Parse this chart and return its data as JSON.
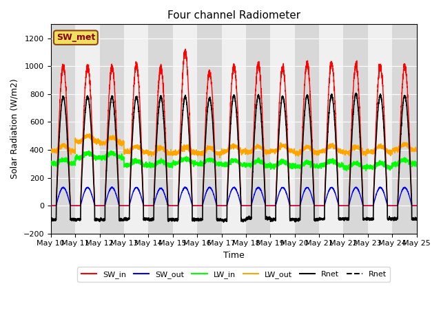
{
  "title": "Four channel Radiometer",
  "xlabel": "Time",
  "ylabel": "Solar Radiation (W/m2)",
  "ylim": [
    -200,
    1300
  ],
  "yticks": [
    -200,
    0,
    200,
    400,
    600,
    800,
    1000,
    1200
  ],
  "x_labels": [
    "May 10",
    "May 11",
    "May 12",
    "May 13",
    "May 14",
    "May 15",
    "May 16",
    "May 17",
    "May 18",
    "May 19",
    "May 20",
    "May 21",
    "May 22",
    "May 23",
    "May 24",
    "May 25"
  ],
  "num_days": 15,
  "annotation": "SW_met",
  "ax_bg_color": "#e8e8e8",
  "band_color_a": "#d8d8d8",
  "band_color_b": "#f0f0f0",
  "SW_in_peaks": [
    1000,
    1000,
    1000,
    1010,
    990,
    1100,
    960,
    1000,
    1010,
    990,
    1020,
    1020,
    1010,
    1000,
    1000
  ],
  "SW_out_peaks": [
    130,
    130,
    130,
    130,
    125,
    130,
    130,
    130,
    130,
    130,
    130,
    130,
    130,
    130,
    130
  ],
  "LW_in_base": [
    300,
    345,
    345,
    290,
    290,
    305,
    300,
    295,
    290,
    285,
    280,
    290,
    275,
    275,
    300
  ],
  "LW_out_base": [
    390,
    460,
    450,
    385,
    375,
    380,
    375,
    390,
    385,
    390,
    380,
    390,
    380,
    385,
    400
  ],
  "Rnet_peaks": [
    780,
    780,
    780,
    780,
    780,
    780,
    770,
    790,
    790,
    780,
    790,
    790,
    800,
    790,
    790
  ],
  "Rnet_night": [
    -100,
    -100,
    -100,
    -95,
    -100,
    -100,
    -100,
    -105,
    -90,
    -100,
    -100,
    -95,
    -95,
    -95,
    -95
  ],
  "day_start": 0.22,
  "day_end": 0.8,
  "figsize": [
    6.4,
    4.8
  ],
  "dpi": 100
}
